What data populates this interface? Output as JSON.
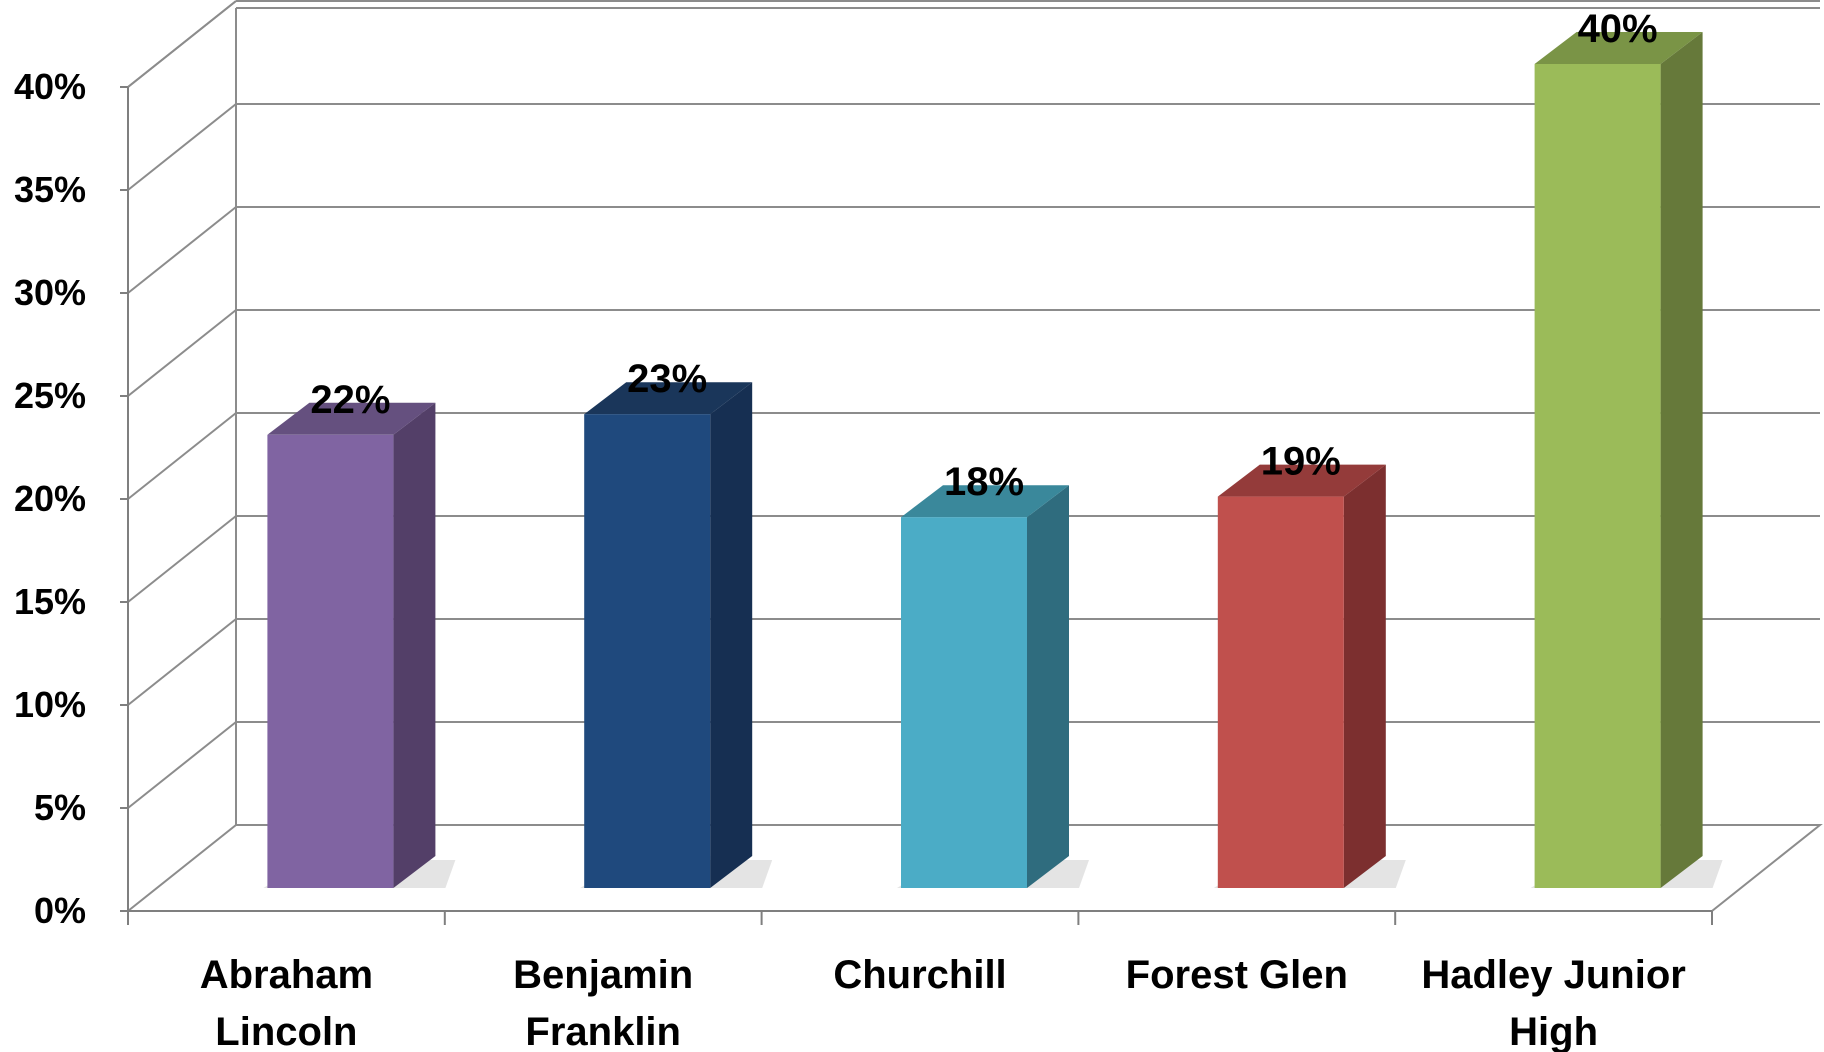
{
  "chart_data": {
    "type": "bar",
    "style": "3d-column",
    "categories": [
      [
        "Abraham",
        "Lincoln"
      ],
      [
        "Benjamin",
        "Franklin"
      ],
      [
        "Churchill"
      ],
      [
        "Forest Glen"
      ],
      [
        "Hadley Junior",
        "High"
      ]
    ],
    "values": [
      22,
      23,
      18,
      19,
      40
    ],
    "data_labels": [
      "22%",
      "23%",
      "18%",
      "19%",
      "40%"
    ],
    "y_ticks": [
      "0%",
      "5%",
      "10%",
      "15%",
      "20%",
      "25%",
      "30%",
      "35%",
      "40%"
    ],
    "y_tick_values": [
      0,
      5,
      10,
      15,
      20,
      25,
      30,
      35,
      40
    ],
    "ylim": [
      0,
      40
    ],
    "title": "",
    "xlabel": "",
    "ylabel": "",
    "grid": true,
    "legend": "none",
    "colors": {
      "fronts": [
        "#8064a2",
        "#1f497d",
        "#4bacc6",
        "#c0504d",
        "#9bbb59"
      ],
      "sides": [
        "#533f68",
        "#162f52",
        "#2f6c7e",
        "#7c2f2f",
        "#66793a"
      ],
      "tops": [
        "#65507f",
        "#1a365a",
        "#3a889b",
        "#943b3a",
        "#7a9446"
      ],
      "gridline": "#8c8c8c",
      "axis": "#7f7f7f"
    }
  }
}
